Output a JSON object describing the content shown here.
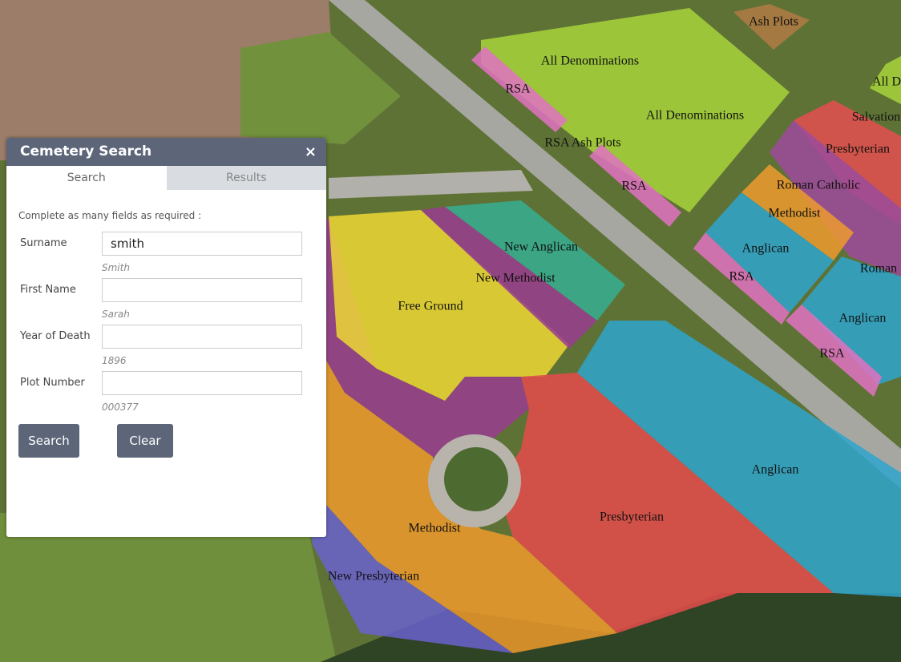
{
  "panel": {
    "title": "Cemetery Search",
    "close": "×",
    "tabs": [
      "Search",
      "Results"
    ],
    "instructions": "Complete as many fields as required :",
    "fields": [
      {
        "label": "Surname",
        "value": "smith",
        "hint": "Smith"
      },
      {
        "label": "First Name",
        "hint": "Sarah"
      },
      {
        "label": "Year of Death",
        "hint": "1896"
      },
      {
        "label": "Plot Number",
        "hint": "000377"
      }
    ],
    "buttons": [
      "Search",
      "Clear"
    ]
  },
  "map": {
    "labels": [
      "Ash Plots",
      "All Denominations",
      "RSA",
      "All D",
      "All Denominations",
      "Salvation",
      "RSA Ash Plots",
      "Presbyterian",
      "RSA",
      "Roman Catholic",
      "Methodist",
      "New Anglican",
      "Anglican",
      "Roman",
      "New Methodist",
      "RSA",
      "Free Ground",
      "Anglican",
      "RSA",
      "Anglican",
      "Presbyterian",
      "Methodist",
      "New Presbyterian"
    ]
  }
}
